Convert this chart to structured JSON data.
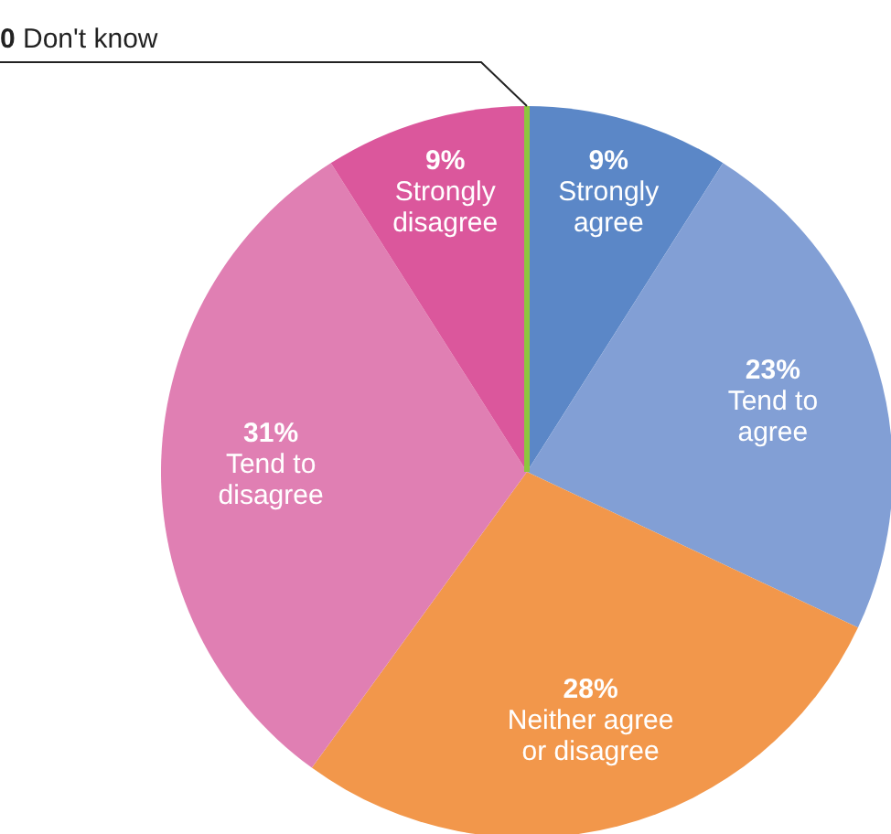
{
  "chart_data": {
    "type": "pie",
    "categories": [
      "Strongly agree",
      "Tend to agree",
      "Neither agree or disagree",
      "Tend to disagree",
      "Strongly disagree",
      "Don't know"
    ],
    "values": [
      9,
      23,
      28,
      31,
      9,
      0
    ],
    "value_labels": [
      "9%",
      "23%",
      "28%",
      "31%",
      "9%",
      "0"
    ],
    "colors": [
      "#5b87c7",
      "#829fd5",
      "#f2974b",
      "#e07fb3",
      "#db579c",
      "#8dc63f"
    ]
  }
}
